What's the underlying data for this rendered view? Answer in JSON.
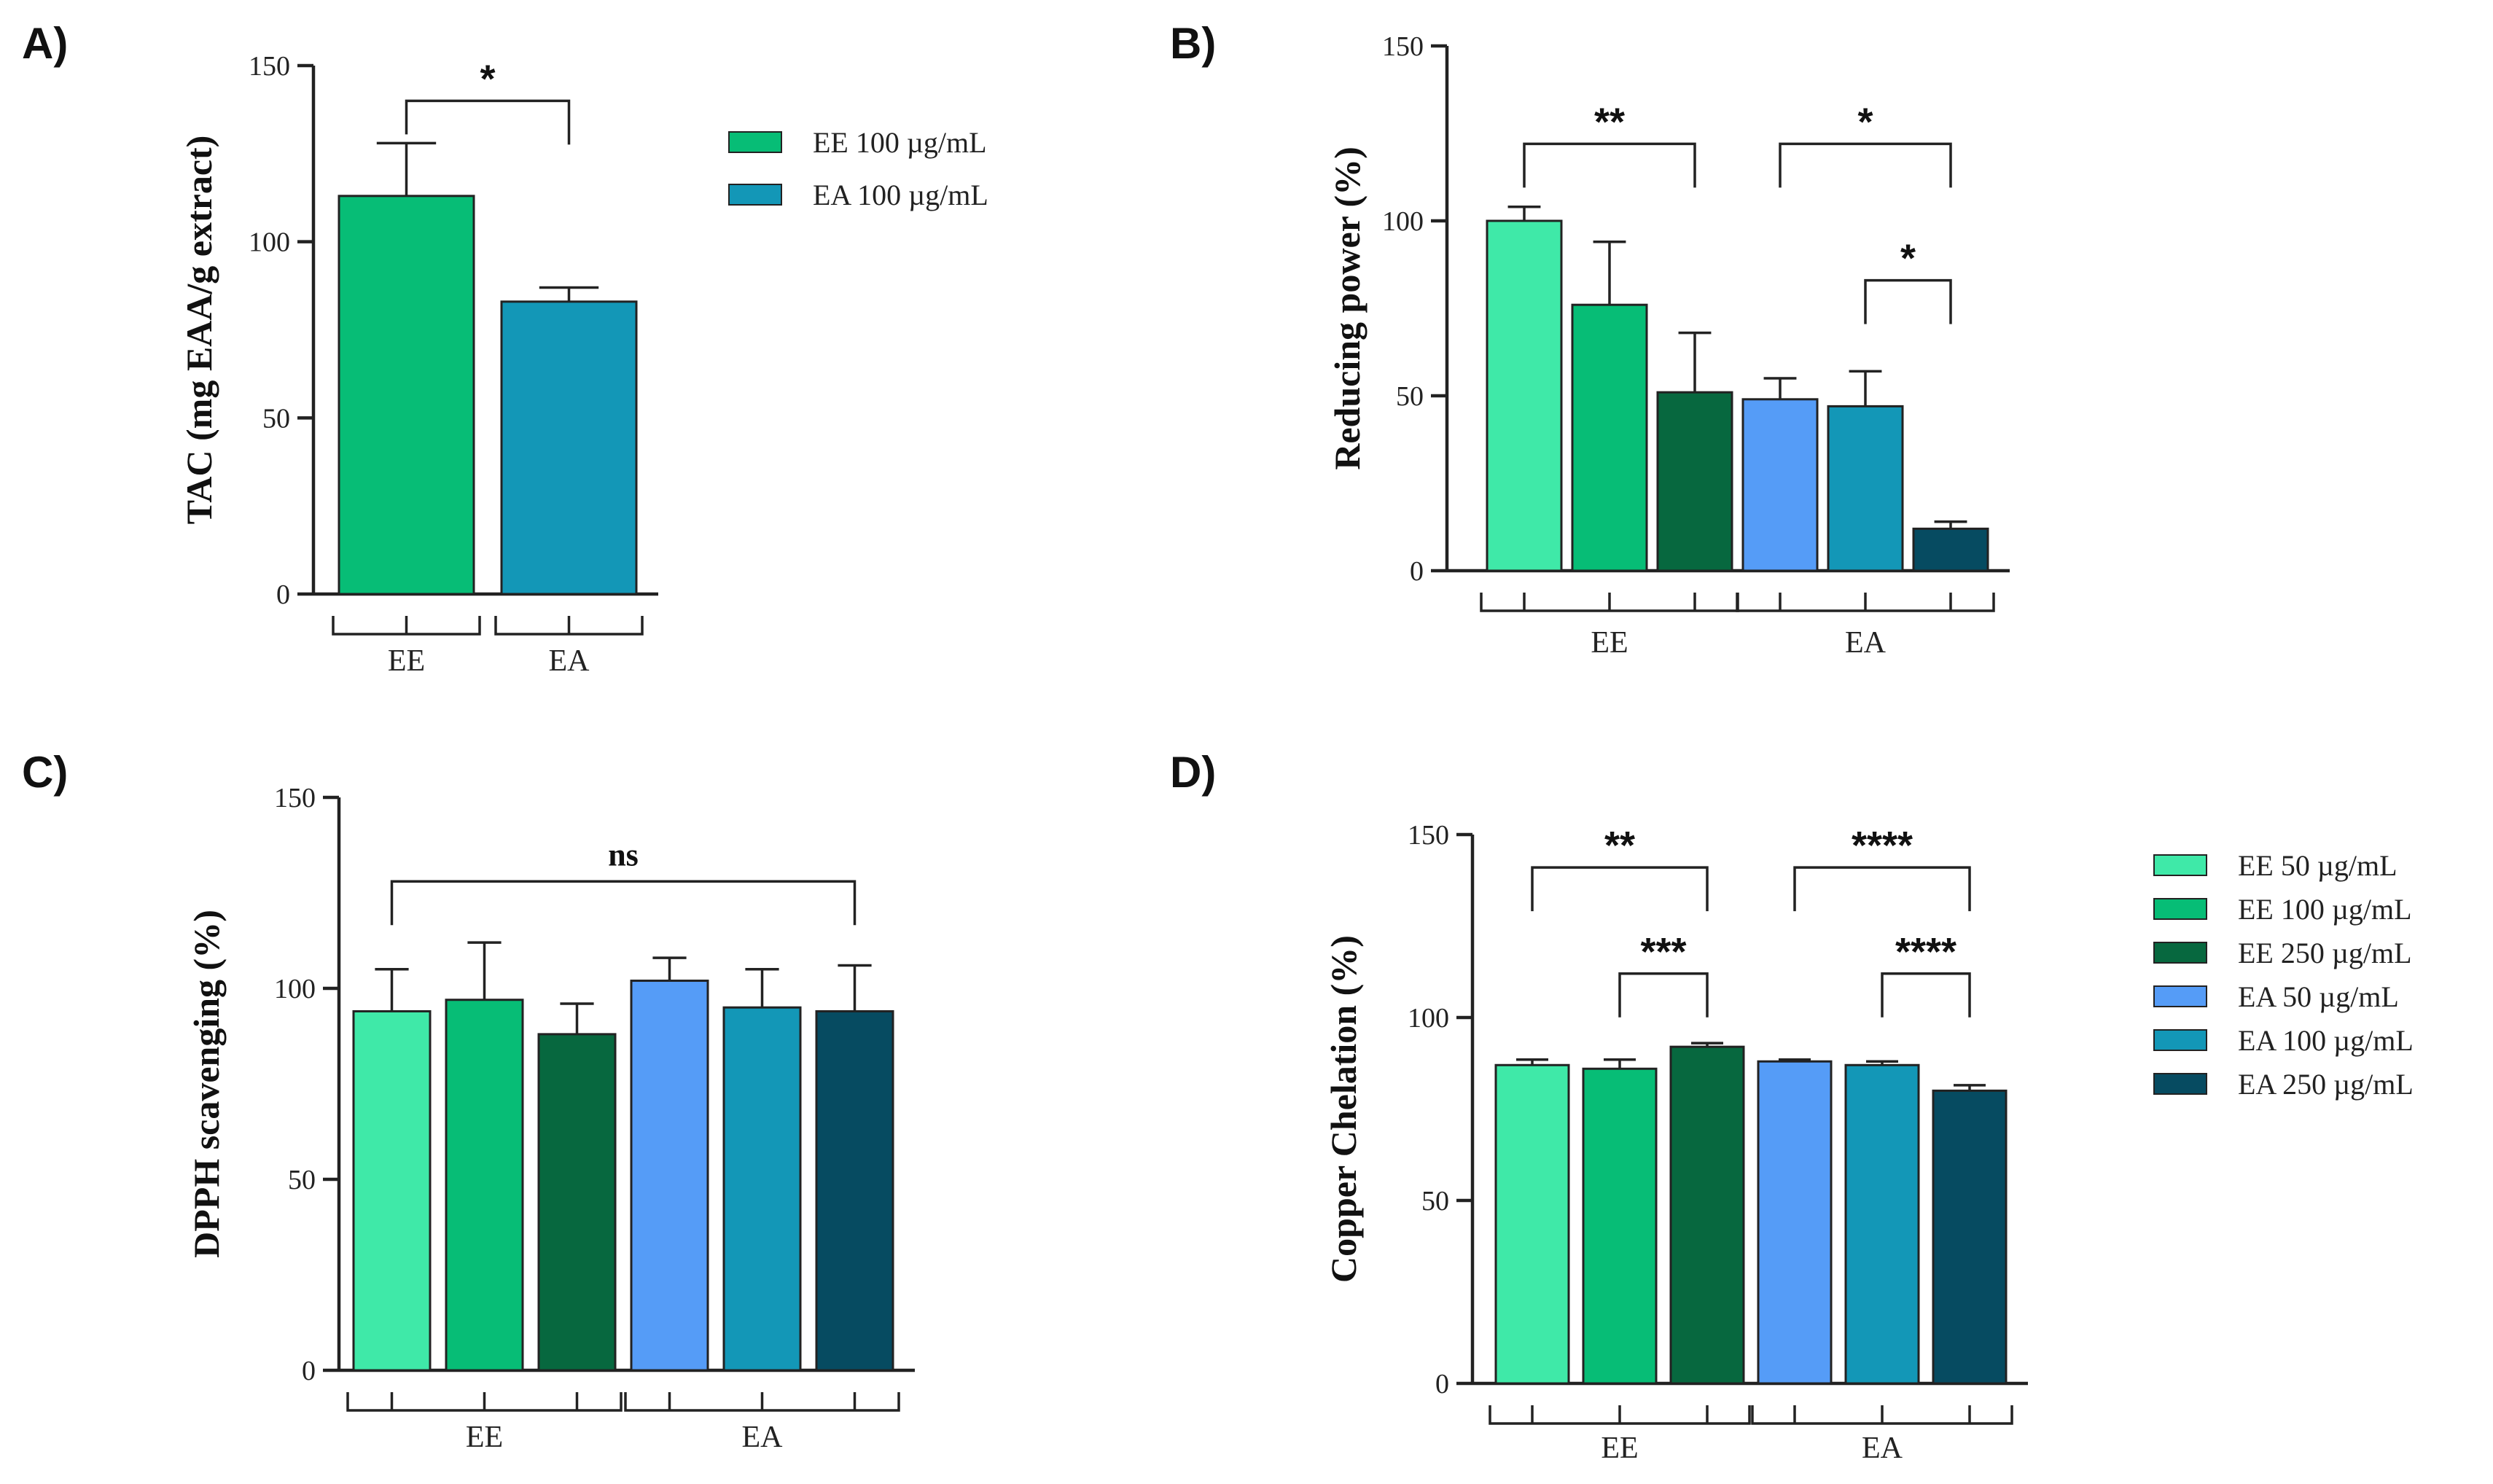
{
  "colors": {
    "EE 50 µg/mL": "#3fe9a8",
    "EE 100 µg/mL": "#07bd76",
    "EE 250 µg/mL": "#07683f",
    "EA 50 µg/mL": "#559cf7",
    "EA 100 µg/mL": "#1397b7",
    "EA 250 µg/mL": "#064b61"
  },
  "chart_data": [
    {
      "panel": "A)",
      "type": "bar",
      "ylabel": "TAC (mg EAA/g extract)",
      "ylim": [
        0,
        150
      ],
      "yticks": [
        0,
        50,
        100,
        150
      ],
      "groups": [
        "EE",
        "EA"
      ],
      "bars": [
        {
          "series": "EE 100 µg/mL",
          "group": "EE",
          "value": 113,
          "error": 15
        },
        {
          "series": "EA 100 µg/mL",
          "group": "EA",
          "value": 83,
          "error": 4
        }
      ],
      "significance": [
        {
          "from": 0,
          "to": 1,
          "label": "*"
        }
      ],
      "legend": [
        "EE 100 µg/mL",
        "EA 100 µg/mL"
      ]
    },
    {
      "panel": "B)",
      "type": "bar",
      "ylabel": "Reducing power (%)",
      "ylim": [
        0,
        150
      ],
      "yticks": [
        0,
        50,
        100,
        150
      ],
      "groups": [
        "EE",
        "EA"
      ],
      "bars": [
        {
          "series": "EE 50 µg/mL",
          "group": "EE",
          "value": 100,
          "error": 4
        },
        {
          "series": "EE 100 µg/mL",
          "group": "EE",
          "value": 76,
          "error": 18
        },
        {
          "series": "EE 250 µg/mL",
          "group": "EE",
          "value": 51,
          "error": 17
        },
        {
          "series": "EA 50 µg/mL",
          "group": "EA",
          "value": 49,
          "error": 6
        },
        {
          "series": "EA 100 µg/mL",
          "group": "EA",
          "value": 47,
          "error": 10
        },
        {
          "series": "EA 250 µg/mL",
          "group": "EA",
          "value": 12,
          "error": 2
        }
      ],
      "significance": [
        {
          "from": 0,
          "to": 2,
          "label": "**"
        },
        {
          "from": 3,
          "to": 5,
          "label": "*"
        },
        {
          "from": 4,
          "to": 5,
          "label": "*"
        }
      ]
    },
    {
      "panel": "C)",
      "type": "bar",
      "ylabel": "DPPH scavenging (%)",
      "ylim": [
        0,
        150
      ],
      "yticks": [
        0,
        50,
        100,
        150
      ],
      "groups": [
        "EE",
        "EA"
      ],
      "bars": [
        {
          "series": "EE 50 µg/mL",
          "group": "EE",
          "value": 94,
          "error": 11
        },
        {
          "series": "EE 100 µg/mL",
          "group": "EE",
          "value": 97,
          "error": 15
        },
        {
          "series": "EE 250 µg/mL",
          "group": "EE",
          "value": 88,
          "error": 8
        },
        {
          "series": "EA 50 µg/mL",
          "group": "EA",
          "value": 102,
          "error": 6
        },
        {
          "series": "EA 100 µg/mL",
          "group": "EA",
          "value": 95,
          "error": 10
        },
        {
          "series": "EA 250 µg/mL",
          "group": "EA",
          "value": 94,
          "error": 12
        }
      ],
      "significance": [
        {
          "from": 0,
          "to": 5,
          "label": "ns"
        }
      ]
    },
    {
      "panel": "D)",
      "type": "bar",
      "ylabel": "Copper Chelation (%)",
      "ylim": [
        0,
        150
      ],
      "yticks": [
        0,
        50,
        100,
        150
      ],
      "groups": [
        "EE",
        "EA"
      ],
      "bars": [
        {
          "series": "EE 50 µg/mL",
          "group": "EE",
          "value": 87,
          "error": 1.5
        },
        {
          "series": "EE 100 µg/mL",
          "group": "EE",
          "value": 86,
          "error": 2.5
        },
        {
          "series": "EE 250 µg/mL",
          "group": "EE",
          "value": 92,
          "error": 1
        },
        {
          "series": "EA 50 µg/mL",
          "group": "EA",
          "value": 88,
          "error": 0.5
        },
        {
          "series": "EA 100 µg/mL",
          "group": "EA",
          "value": 87,
          "error": 1
        },
        {
          "series": "EA 250 µg/mL",
          "group": "EA",
          "value": 80,
          "error": 1.5
        }
      ],
      "significance": [
        {
          "from": 0,
          "to": 2,
          "label": "**"
        },
        {
          "from": 1,
          "to": 2,
          "label": "***"
        },
        {
          "from": 3,
          "to": 5,
          "label": "****"
        },
        {
          "from": 4,
          "to": 5,
          "label": "****"
        }
      ],
      "legend": [
        "EE 50 µg/mL",
        "EE 100 µg/mL",
        "EE 250 µg/mL",
        "EA 50 µg/mL",
        "EA 100 µg/mL",
        "EA 250 µg/mL"
      ]
    }
  ]
}
